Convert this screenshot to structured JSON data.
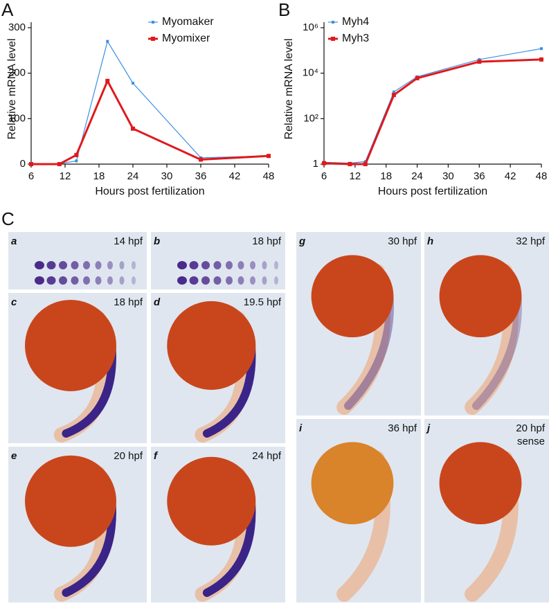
{
  "chart_data": [
    {
      "type": "line",
      "panel": "A",
      "y_label": "Relative mRNA level",
      "x_label": "Hours post fertilization",
      "x": [
        6,
        11,
        14,
        19.5,
        24,
        36,
        48
      ],
      "xlim": [
        6,
        48
      ],
      "xticks": [
        6,
        12,
        18,
        24,
        30,
        36,
        42,
        48
      ],
      "ylim": [
        0,
        300
      ],
      "yticks": [
        0,
        100,
        200,
        300
      ],
      "yscale": "linear",
      "legend": "upper right",
      "series": [
        {
          "name": "Myomaker",
          "color": "#3d8fe0",
          "values": [
            0,
            1,
            7,
            270,
            178,
            14,
            18
          ]
        },
        {
          "name": "Myomixer",
          "color": "#e0191c",
          "values": [
            0,
            0,
            20,
            183,
            78,
            10,
            18
          ]
        }
      ]
    },
    {
      "type": "line",
      "panel": "B",
      "y_label": "Relative mRNA level",
      "x_label": "Hours post fertilization",
      "x": [
        6,
        11,
        14,
        19.5,
        24,
        36,
        48
      ],
      "xlim": [
        6,
        48
      ],
      "xticks": [
        6,
        12,
        18,
        24,
        30,
        36,
        42,
        48
      ],
      "ylim": [
        1,
        1000000
      ],
      "yticks": [
        1,
        {
          "value": 100,
          "label": "10²"
        },
        {
          "value": 10000,
          "label": "10⁴"
        },
        {
          "value": 1000000,
          "label": "10⁶"
        }
      ],
      "yscale": "log",
      "legend": "upper left",
      "series": [
        {
          "name": "Myh4",
          "color": "#3d8fe0",
          "values": [
            1.2,
            1.1,
            1.3,
            1500,
            7000,
            40000,
            120000
          ]
        },
        {
          "name": "Myh3",
          "color": "#e0191c",
          "values": [
            1.1,
            1.0,
            1.0,
            1100,
            6000,
            32000,
            40000
          ]
        }
      ]
    }
  ],
  "panel_c": {
    "letter": "C",
    "panels": [
      {
        "letter": "a",
        "label": [
          "14 hpf"
        ]
      },
      {
        "letter": "b",
        "label": [
          "18 hpf"
        ]
      },
      {
        "letter": "c",
        "label": [
          "18 hpf"
        ]
      },
      {
        "letter": "d",
        "label": [
          "19.5 hpf"
        ]
      },
      {
        "letter": "e",
        "label": [
          "20 hpf"
        ]
      },
      {
        "letter": "f",
        "label": [
          "24 hpf"
        ]
      },
      {
        "letter": "g",
        "label": [
          "30 hpf"
        ]
      },
      {
        "letter": "h",
        "label": [
          "32 hpf"
        ]
      },
      {
        "letter": "i",
        "label": [
          "36 hpf"
        ]
      },
      {
        "letter": "j",
        "label": [
          "20 hpf",
          "sense"
        ]
      }
    ]
  }
}
